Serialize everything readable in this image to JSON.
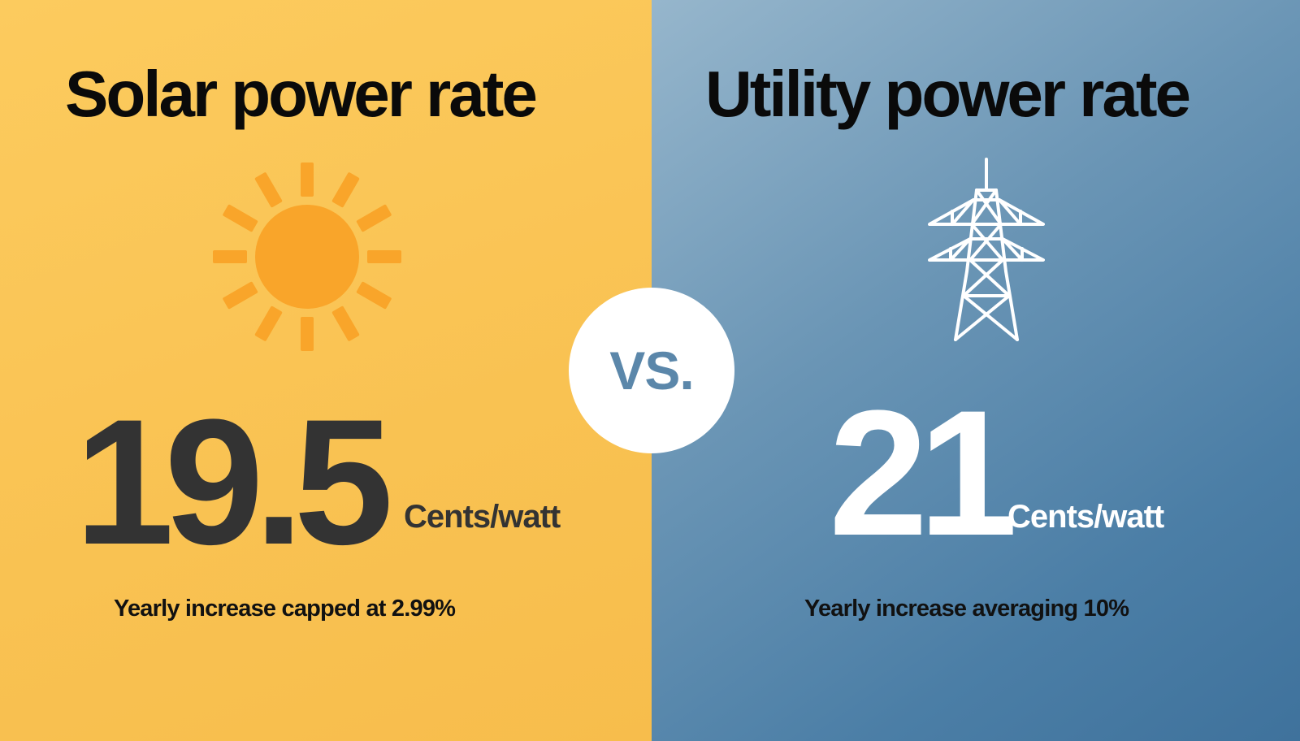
{
  "left_panel": {
    "title": "Solar power rate",
    "icon": "sun-icon",
    "value": "19.5",
    "unit": "Cents/watt",
    "note": "Yearly increase capped at 2.99%",
    "background_color": "#f9c252",
    "icon_color": "#f9a52a"
  },
  "right_panel": {
    "title": "Utility power rate",
    "icon": "power-tower-icon",
    "value": "21",
    "unit": "Cents/watt",
    "note": "Yearly increase averaging 10%",
    "background_color": "#4b7ea6",
    "icon_color": "#ffffff"
  },
  "divider": {
    "label": "VS.",
    "text_color": "#5b87aa"
  }
}
